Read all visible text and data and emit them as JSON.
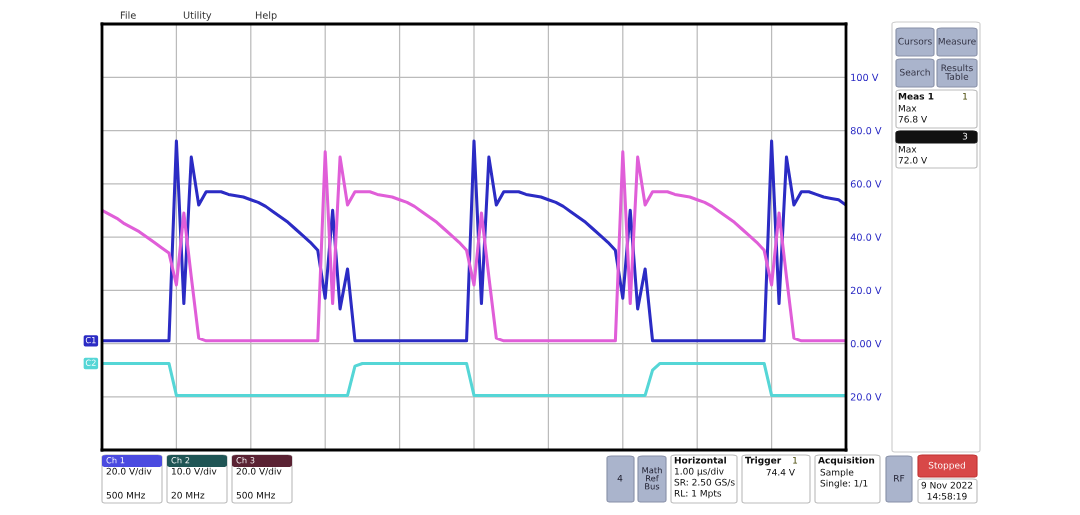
{
  "chart_data": {
    "type": "line",
    "categories": [
      null,
      null,
      null,
      null,
      null,
      null,
      null,
      null,
      null,
      null,
      null,
      null,
      null,
      null,
      null,
      null,
      null,
      null,
      null,
      null,
      null,
      null,
      null,
      null,
      null,
      null,
      null,
      null,
      null,
      null,
      null,
      null,
      null,
      null,
      null,
      null,
      null,
      null,
      null,
      null,
      null,
      null,
      null,
      null,
      null,
      null,
      null,
      null,
      null,
      null,
      null,
      null,
      null,
      null,
      null,
      null,
      null,
      null,
      null,
      null,
      null,
      null,
      null,
      null,
      null,
      null,
      null,
      null,
      null,
      null,
      null,
      null,
      null,
      null,
      null,
      null,
      null,
      null,
      null,
      null,
      null,
      null,
      null,
      null,
      null,
      null,
      null,
      null,
      null,
      null,
      null,
      null,
      null,
      null,
      null,
      null,
      null,
      null,
      null,
      null,
      null
    ],
    "series": [
      {
        "name": "C1",
        "color": "#2b2bc4",
        "values": [
          1,
          1,
          1,
          1,
          1,
          1,
          1,
          1,
          1,
          1,
          76,
          15,
          70,
          52,
          57,
          57,
          57,
          56,
          55.5,
          55,
          54,
          53,
          51.5,
          49.5,
          47.5,
          45.5,
          43,
          40.5,
          38,
          35,
          17,
          50,
          13,
          28,
          1,
          1,
          1,
          1,
          1,
          1,
          1,
          1,
          1,
          1,
          1,
          1,
          1,
          1,
          1,
          1,
          76,
          15,
          70,
          52,
          57,
          57,
          57,
          56,
          55.5,
          55,
          54,
          53,
          51.5,
          49.5,
          47.5,
          45.5,
          43,
          40.5,
          38,
          35,
          17,
          50,
          13,
          28,
          1,
          1,
          1,
          1,
          1,
          1,
          1,
          1,
          1,
          1,
          1,
          1,
          1,
          1,
          1,
          1,
          76,
          15,
          70,
          52,
          57,
          57,
          56,
          55,
          54.5,
          54,
          52
        ]
      },
      {
        "color": "#e05ed8",
        "values": [
          50,
          48.5,
          47,
          45,
          43.5,
          42,
          40,
          38,
          36,
          34,
          22,
          49,
          25,
          2,
          1,
          1,
          1,
          1,
          1,
          1,
          1,
          1,
          1,
          1,
          1,
          1,
          1,
          1,
          1,
          1,
          72,
          15,
          70,
          52,
          57,
          57,
          57,
          56,
          55.5,
          55,
          54,
          53,
          51.5,
          49.5,
          47.5,
          45.5,
          43,
          40.5,
          38,
          35,
          22,
          49,
          25,
          2,
          1,
          1,
          1,
          1,
          1,
          1,
          1,
          1,
          1,
          1,
          1,
          1,
          1,
          1,
          1,
          1,
          72,
          15,
          70,
          52,
          57,
          57,
          57,
          56,
          55.5,
          55,
          54,
          53,
          51.5,
          49.5,
          47.5,
          45.5,
          43,
          40.5,
          38,
          35,
          22,
          49,
          25,
          2,
          1,
          1,
          1,
          1,
          1,
          1,
          1
        ]
      },
      {
        "name": "C2",
        "color": "#55d6d6",
        "values": [
          -7.5,
          -7.5,
          -7.5,
          -7.5,
          -7.5,
          -7.5,
          -7.5,
          -7.5,
          -7.5,
          -7.5,
          -19.5,
          -19.5,
          -19.5,
          -19.5,
          -19.5,
          -19.5,
          -19.5,
          -19.5,
          -19.5,
          -19.5,
          -19.5,
          -19.5,
          -19.5,
          -19.5,
          -19.5,
          -19.5,
          -19.5,
          -19.5,
          -19.5,
          -19.5,
          -19.5,
          -19.5,
          -19.5,
          -19.5,
          -8.5,
          -7.5,
          -7.5,
          -7.5,
          -7.5,
          -7.5,
          -7.5,
          -7.5,
          -7.5,
          -7.5,
          -7.5,
          -7.5,
          -7.5,
          -7.5,
          -7.5,
          -7.5,
          -19.5,
          -19.5,
          -19.5,
          -19.5,
          -19.5,
          -19.5,
          -19.5,
          -19.5,
          -19.5,
          -19.5,
          -19.5,
          -19.5,
          -19.5,
          -19.5,
          -19.5,
          -19.5,
          -19.5,
          -19.5,
          -19.5,
          -19.5,
          -19.5,
          -19.5,
          -19.5,
          -19.5,
          -10,
          -7.5,
          -7.5,
          -7.5,
          -7.5,
          -7.5,
          -7.5,
          -7.5,
          -7.5,
          -7.5,
          -7.5,
          -7.5,
          -7.5,
          -7.5,
          -7.5,
          -7.5,
          -19.5,
          -19.5,
          -19.5,
          -19.5,
          -19.5,
          -19.5,
          -19.5,
          -19.5,
          -19.5,
          -19.5,
          -19.5
        ]
      }
    ],
    "ylim": [
      -40,
      120
    ],
    "yticks": [
      {
        "value": -20,
        "label": "20.0 V"
      },
      {
        "value": 0,
        "label": "0.00 V"
      },
      {
        "value": 20,
        "label": "20.0 V"
      },
      {
        "value": 40,
        "label": "40.0 V"
      },
      {
        "value": 60,
        "label": "60.0 V"
      },
      {
        "value": 80,
        "label": "80.0 V"
      },
      {
        "value": 100,
        "label": "100 V"
      }
    ],
    "grid": true,
    "tick_labels": "y",
    "annotations": [
      "File",
      "Utility",
      "Help",
      "Cursors",
      "Measure",
      "Search",
      "Results Table",
      "Meas 1",
      "1",
      "Max",
      "76.8 V",
      "3",
      "Max",
      "72.0 V",
      "Ch 1",
      "20.0 V/div",
      "500 MHz",
      "Ch 2",
      "10.0 V/div",
      "20 MHz",
      "Ch 3",
      "20.0 V/div",
      "500 MHz",
      "4",
      "Math Ref Bus",
      "Horizontal",
      "1.00 µs/div",
      "SR: 2.50 GS/s",
      "RL: 1 Mpts",
      "Trigger",
      "1",
      "74.4 V",
      "Acquisition",
      "Sample",
      "Single: 1/1",
      "RF",
      "Stopped",
      "9 Nov 2022",
      "14:58:19"
    ]
  }
}
